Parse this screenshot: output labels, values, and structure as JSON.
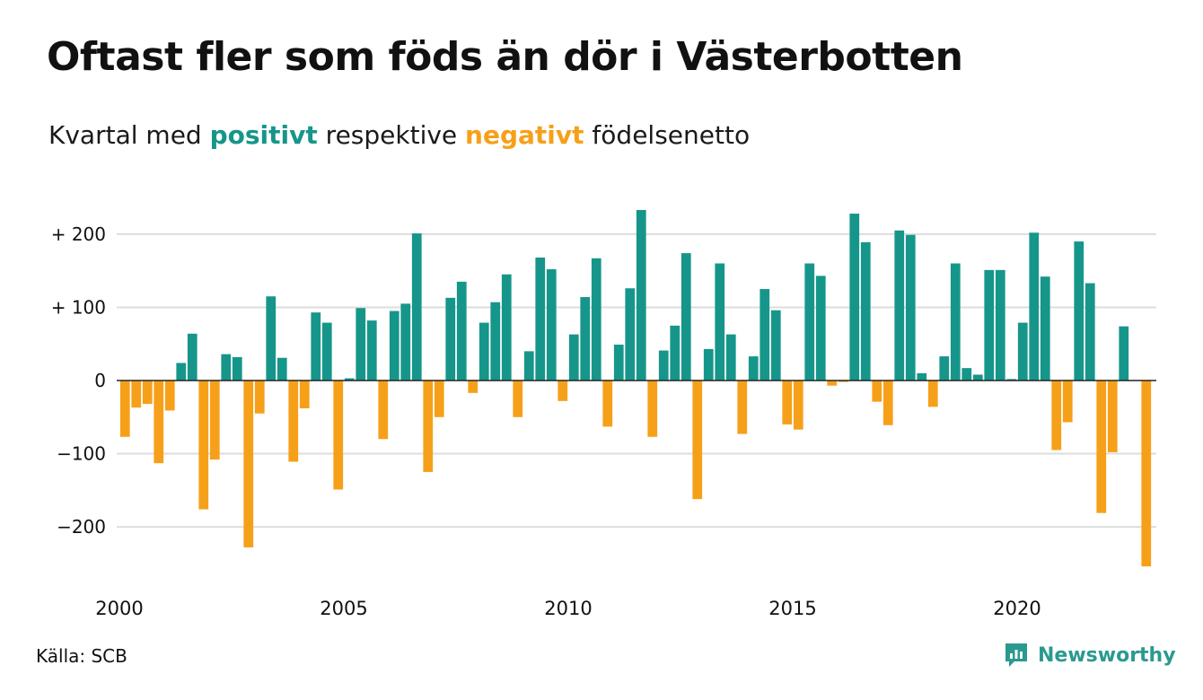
{
  "title": "Oftast fler som föds än dör i Västerbotten",
  "subtitle": {
    "before": "Kvartal med ",
    "positive_word": "positivt",
    "middle": " respektive ",
    "negative_word": "negativt",
    "after": " födelsenetto"
  },
  "colors": {
    "positive": "#16968a",
    "negative": "#f6a01a",
    "grid": "#dddddd",
    "zero_line": "#222222",
    "brand": "#2a9a8f"
  },
  "source": "Källa: SCB",
  "brand": {
    "name": "Newsworthy",
    "icon": "newsworthy-logo-icon"
  },
  "chart_data": {
    "type": "bar",
    "x_start_year": 2000,
    "periods_per_year": 4,
    "xlim": [
      2000,
      2023
    ],
    "ylim": [
      -260,
      240
    ],
    "x_ticks": [
      {
        "value": 2000,
        "label": "2000"
      },
      {
        "value": 2005,
        "label": "2005"
      },
      {
        "value": 2010,
        "label": "2010"
      },
      {
        "value": 2015,
        "label": "2015"
      },
      {
        "value": 2020,
        "label": "2020"
      }
    ],
    "y_ticks": [
      {
        "value": 200,
        "label": "+ 200"
      },
      {
        "value": 100,
        "label": "+ 100"
      },
      {
        "value": 0,
        "label": "0"
      },
      {
        "value": -100,
        "label": "−100"
      },
      {
        "value": -200,
        "label": "−200"
      }
    ],
    "grid": true,
    "values": [
      -77,
      -37,
      -32,
      -113,
      -41,
      24,
      64,
      -176,
      -108,
      36,
      32,
      -228,
      -45,
      115,
      31,
      -111,
      -38,
      93,
      79,
      -149,
      3,
      99,
      82,
      -80,
      95,
      105,
      201,
      -125,
      -50,
      113,
      135,
      -17,
      79,
      107,
      145,
      -50,
      40,
      168,
      152,
      -28,
      63,
      114,
      167,
      -63,
      49,
      126,
      233,
      -77,
      41,
      75,
      174,
      -162,
      43,
      160,
      63,
      -73,
      33,
      125,
      96,
      -60,
      -67,
      160,
      143,
      -7,
      -2,
      228,
      189,
      -29,
      -61,
      205,
      199,
      10,
      -36,
      33,
      160,
      17,
      8,
      151,
      151,
      2,
      79,
      202,
      142,
      -95,
      -57,
      190,
      133,
      -181,
      -98,
      74,
      0,
      -254
    ]
  }
}
